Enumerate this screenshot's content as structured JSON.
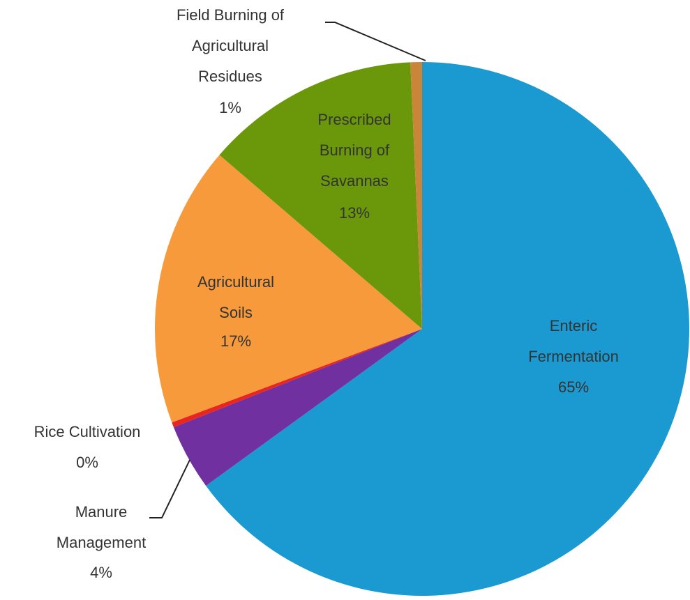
{
  "chart_data": {
    "type": "pie",
    "categories": [
      "Enteric Fermentation",
      "Manure Management",
      "Rice Cultivation",
      "Agricultural Soils",
      "Prescribed Burning of Savannas",
      "Field Burning of Agricultural Residues"
    ],
    "values": [
      65,
      4,
      0.3,
      17,
      13,
      0.7
    ],
    "value_labels": [
      "65%",
      "4%",
      "0%",
      "17%",
      "13%",
      "1%"
    ],
    "colors": [
      "#1b9ad2",
      "#7030a0",
      "#e8251f",
      "#f79a3b",
      "#6b980a",
      "#c9853a"
    ]
  }
}
